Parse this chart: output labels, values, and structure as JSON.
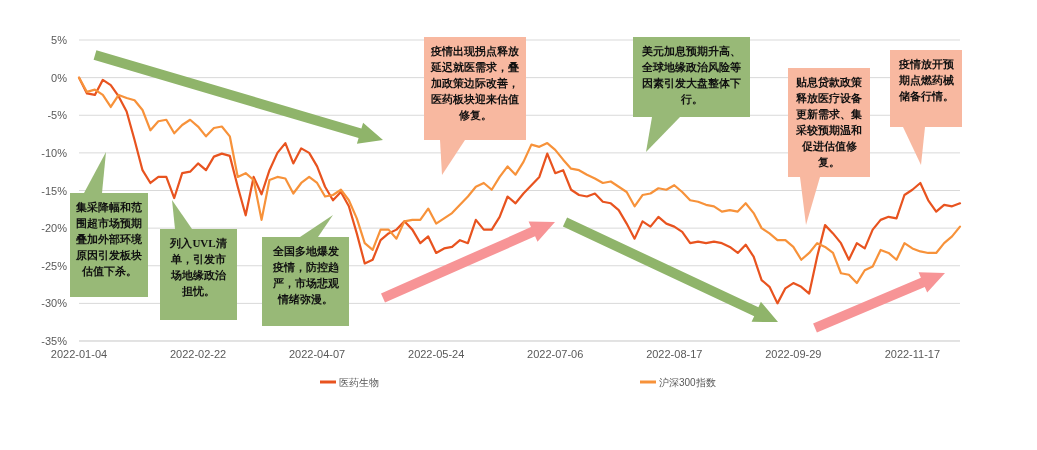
{
  "chart_data": {
    "type": "line",
    "categories": [
      "2022-01-04",
      null,
      null,
      null,
      null,
      null,
      null,
      null,
      null,
      null,
      null,
      null,
      null,
      null,
      null,
      "2022-02-22",
      null,
      null,
      null,
      null,
      null,
      null,
      null,
      null,
      null,
      null,
      null,
      null,
      null,
      null,
      "2022-04-07",
      null,
      null,
      null,
      null,
      null,
      null,
      null,
      null,
      null,
      null,
      null,
      null,
      null,
      null,
      "2022-05-24",
      null,
      null,
      null,
      null,
      null,
      null,
      null,
      null,
      null,
      null,
      null,
      null,
      null,
      null,
      "2022-07-06",
      null,
      null,
      null,
      null,
      null,
      null,
      null,
      null,
      null,
      null,
      null,
      null,
      null,
      null,
      "2022-08-17",
      null,
      null,
      null,
      null,
      null,
      null,
      null,
      null,
      null,
      null,
      null,
      null,
      null,
      null,
      "2022-09-29",
      null,
      null,
      null,
      null,
      null,
      null,
      null,
      null,
      null,
      null,
      null,
      null,
      null,
      null,
      "2022-11-17",
      null,
      null,
      null,
      null,
      null,
      null
    ],
    "series": [
      {
        "name": "医药生物",
        "color": "#e8531f",
        "values": [
          0,
          -2.1,
          -2.3,
          -0.3,
          -1.0,
          -2.5,
          -4.5,
          -8.3,
          -12.3,
          -14,
          -13.2,
          -13.2,
          -16,
          -12.7,
          -12.5,
          -11.4,
          -12.3,
          -10.5,
          -10.1,
          -10.4,
          -14.5,
          -18.3,
          -13.2,
          -15.5,
          -12.3,
          -10,
          -8.7,
          -11.4,
          -9.4,
          -10,
          -11.8,
          -14.5,
          -16.3,
          -15.2,
          -17.1,
          -20.7,
          -24.7,
          -24.2,
          -21.6,
          -20.7,
          -20.2,
          -19.1,
          -20.2,
          -22,
          -21.1,
          -23.3,
          -22.7,
          -22.5,
          -21.6,
          -22,
          -18.9,
          -20.2,
          -20.2,
          -18.5,
          -15.8,
          -16.7,
          -15.4,
          -14.3,
          -13.2,
          -10.1,
          -12.7,
          -12.3,
          -14.9,
          -15.6,
          -15.8,
          -15.4,
          -16.5,
          -16.7,
          -17.6,
          -19.4,
          -21.4,
          -19.1,
          -19.8,
          -18.5,
          -19.4,
          -19.8,
          -20.5,
          -22,
          -21.8,
          -22,
          -21.8,
          -22,
          -22.5,
          -23.3,
          -22.2,
          -23.8,
          -26.9,
          -27.8,
          -30,
          -28,
          -27.3,
          -27.8,
          -28.7,
          -23.8,
          -19.6,
          -20.7,
          -22,
          -24.2,
          -22,
          -22.7,
          -20.2,
          -18.9,
          -18.5,
          -18.7,
          -15.6,
          -14.9,
          -14,
          -16.3,
          -17.8,
          -16.9,
          -17.1,
          -16.7
        ]
      },
      {
        "name": "沪深300指数",
        "color": "#f7923a",
        "values": [
          0,
          -1.9,
          -1.6,
          -2.3,
          -3.9,
          -2.3,
          -2.7,
          -3,
          -4.3,
          -7,
          -5.8,
          -5.6,
          -7.4,
          -6.3,
          -5.6,
          -6.5,
          -7.8,
          -6.7,
          -6.5,
          -7.8,
          -13.2,
          -12.7,
          -13.6,
          -18.9,
          -13.6,
          -13.2,
          -13.4,
          -15.4,
          -14,
          -13.2,
          -14,
          -15.8,
          -15.6,
          -14.9,
          -16.3,
          -18.7,
          -22,
          -22.9,
          -20.2,
          -20.2,
          -21.4,
          -19.1,
          -18.9,
          -18.9,
          -17.4,
          -19.4,
          -18.7,
          -18,
          -16.9,
          -15.8,
          -14.5,
          -14,
          -14.9,
          -13.2,
          -11.8,
          -12.9,
          -11.2,
          -8.9,
          -9.2,
          -8.7,
          -9.6,
          -10.9,
          -12.1,
          -12.3,
          -12.9,
          -13.4,
          -14,
          -13.8,
          -14.5,
          -15.2,
          -17.1,
          -15.6,
          -15.4,
          -14.7,
          -14.9,
          -14.3,
          -15.2,
          -16.3,
          -16.5,
          -16.9,
          -17.1,
          -17.8,
          -17.6,
          -17.8,
          -16.7,
          -18,
          -20,
          -20.7,
          -21.6,
          -21.6,
          -22.5,
          -24.2,
          -23.3,
          -22,
          -22.5,
          -23.3,
          -26,
          -26.2,
          -27.3,
          -25.6,
          -25.1,
          -22.9,
          -23.3,
          -24.2,
          -22,
          -22.7,
          -23.1,
          -23.3,
          -23.3,
          -22,
          -21.1,
          -19.8
        ]
      }
    ],
    "ylim": [
      -35,
      5
    ],
    "yticks": [
      {
        "value": 5,
        "label": "5%"
      },
      {
        "value": 0,
        "label": "0%"
      },
      {
        "value": -5,
        "label": "-5%"
      },
      {
        "value": -10,
        "label": "-10%"
      },
      {
        "value": -15,
        "label": "-15%"
      },
      {
        "value": -20,
        "label": "-20%"
      },
      {
        "value": -25,
        "label": "-25%"
      },
      {
        "value": -30,
        "label": "-30%"
      },
      {
        "value": -35,
        "label": "-35%"
      }
    ],
    "grid": "y",
    "legend": "bottom",
    "marker": "none",
    "line_style": "solid",
    "annotations": [
      "集采降幅和范围超市场预期叠加外部环境原因引发板块估值下杀。",
      "列入UVL清单，引发市场地缘政治担忧。",
      "全国多地爆发疫情，防控趋严，市场悲观情绪弥漫。",
      "疫情出现拐点释放延迟就医需求，叠加政策边际改善，医药板块迎来估值修复。",
      "美元加息预期升高、全球地缘政治风险等因素引发大盘整体下行。",
      "贴息贷款政策释放医疗设备更新需求、集采较预期温和促进估值修复。",
      "疫情放开预期点燃药械储备行情。"
    ]
  }
}
